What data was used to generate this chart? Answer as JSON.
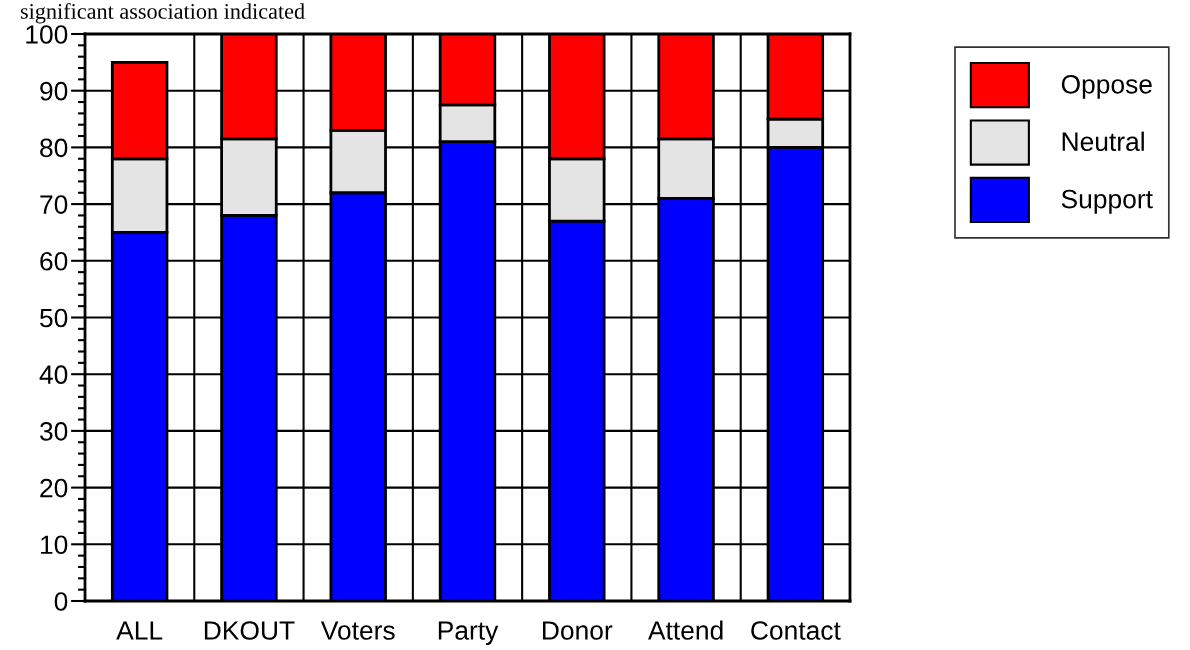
{
  "chart_data": {
    "type": "bar",
    "stacked": true,
    "title": "significant association indicated",
    "categories": [
      "ALL",
      "DKOUT",
      "Voters",
      "Party",
      "Donor",
      "Attend",
      "Contact"
    ],
    "series": [
      {
        "name": "Support",
        "color": "#0000ff",
        "values": [
          65,
          68,
          72,
          81,
          67,
          71,
          80
        ]
      },
      {
        "name": "Neutral",
        "color": "#e4e4e4",
        "values": [
          13,
          13.5,
          11,
          6.5,
          11,
          10.5,
          5
        ]
      },
      {
        "name": "Oppose",
        "color": "#ff0000",
        "values": [
          17,
          18.5,
          17,
          12.5,
          22,
          18.5,
          15
        ]
      }
    ],
    "ylim": [
      0,
      100
    ],
    "yticks": [
      0,
      10,
      20,
      30,
      40,
      50,
      60,
      70,
      80,
      90,
      100
    ],
    "grid": true,
    "legend": "top right"
  }
}
